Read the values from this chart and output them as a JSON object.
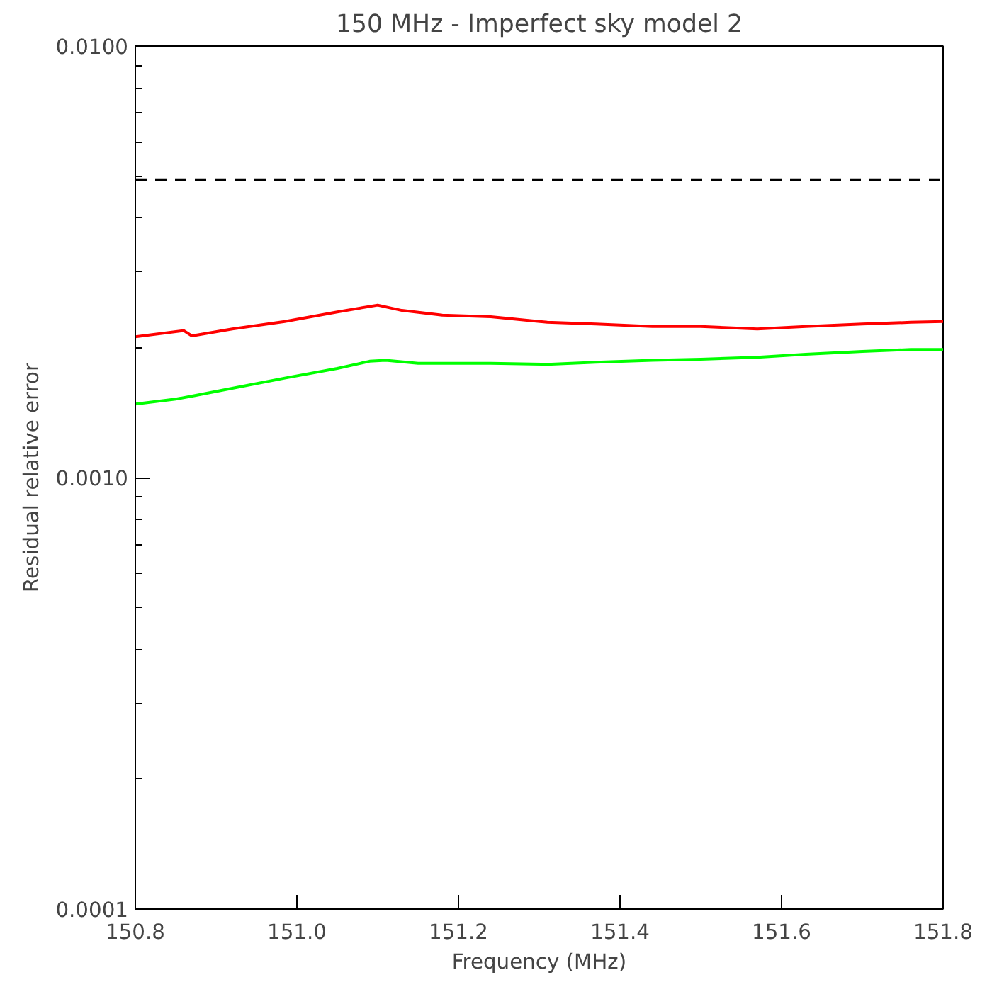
{
  "chart_data": {
    "type": "line",
    "title": "150 MHz - Imperfect sky model 2",
    "xlabel": "Frequency (MHz)",
    "ylabel": "Residual relative error",
    "log": "y",
    "grid": false,
    "line_style": "solid",
    "marker": "none",
    "xlim": [
      150.8,
      151.8
    ],
    "xticks": [
      {
        "value": 150.8,
        "label": "150.8"
      },
      {
        "value": 151.0,
        "label": "151.0"
      },
      {
        "value": 151.2,
        "label": "151.2"
      },
      {
        "value": 151.4,
        "label": "151.4"
      },
      {
        "value": 151.6,
        "label": "151.6"
      },
      {
        "value": 151.8,
        "label": "151.8"
      }
    ],
    "ylim": [
      0.0001,
      0.01
    ],
    "yticks": [
      {
        "value": 0.0001,
        "label": "0.0001"
      },
      {
        "value": 0.001,
        "label": "0.0010"
      },
      {
        "value": 0.01,
        "label": "0.0100"
      }
    ],
    "ref_lines": [
      {
        "axis": "y",
        "value": 0.0049,
        "color": "#000000",
        "line_style": "dashed"
      }
    ],
    "series": [
      {
        "color": "#ff0000",
        "x": [
          150.8,
          150.86,
          150.87,
          150.92,
          150.985,
          151.05,
          151.1,
          151.13,
          151.18,
          151.24,
          151.31,
          151.37,
          151.44,
          151.5,
          151.57,
          151.63,
          151.7,
          151.76,
          151.8
        ],
        "values": [
          0.00212,
          0.00219,
          0.00213,
          0.00221,
          0.0023,
          0.00242,
          0.00251,
          0.00244,
          0.00238,
          0.00236,
          0.00229,
          0.00227,
          0.00224,
          0.00224,
          0.00221,
          0.00224,
          0.00227,
          0.00229,
          0.0023
        ]
      },
      {
        "color": "#00ff00",
        "x": [
          150.8,
          150.85,
          150.875,
          150.92,
          150.985,
          151.05,
          151.09,
          151.11,
          151.15,
          151.24,
          151.31,
          151.37,
          151.44,
          151.5,
          151.57,
          151.63,
          151.7,
          151.76,
          151.8
        ],
        "values": [
          0.00148,
          0.00152,
          0.00155,
          0.00161,
          0.0017,
          0.00179,
          0.00186,
          0.00187,
          0.00184,
          0.00184,
          0.00183,
          0.00185,
          0.00187,
          0.00188,
          0.0019,
          0.00193,
          0.00196,
          0.00198,
          0.00198
        ]
      }
    ]
  }
}
